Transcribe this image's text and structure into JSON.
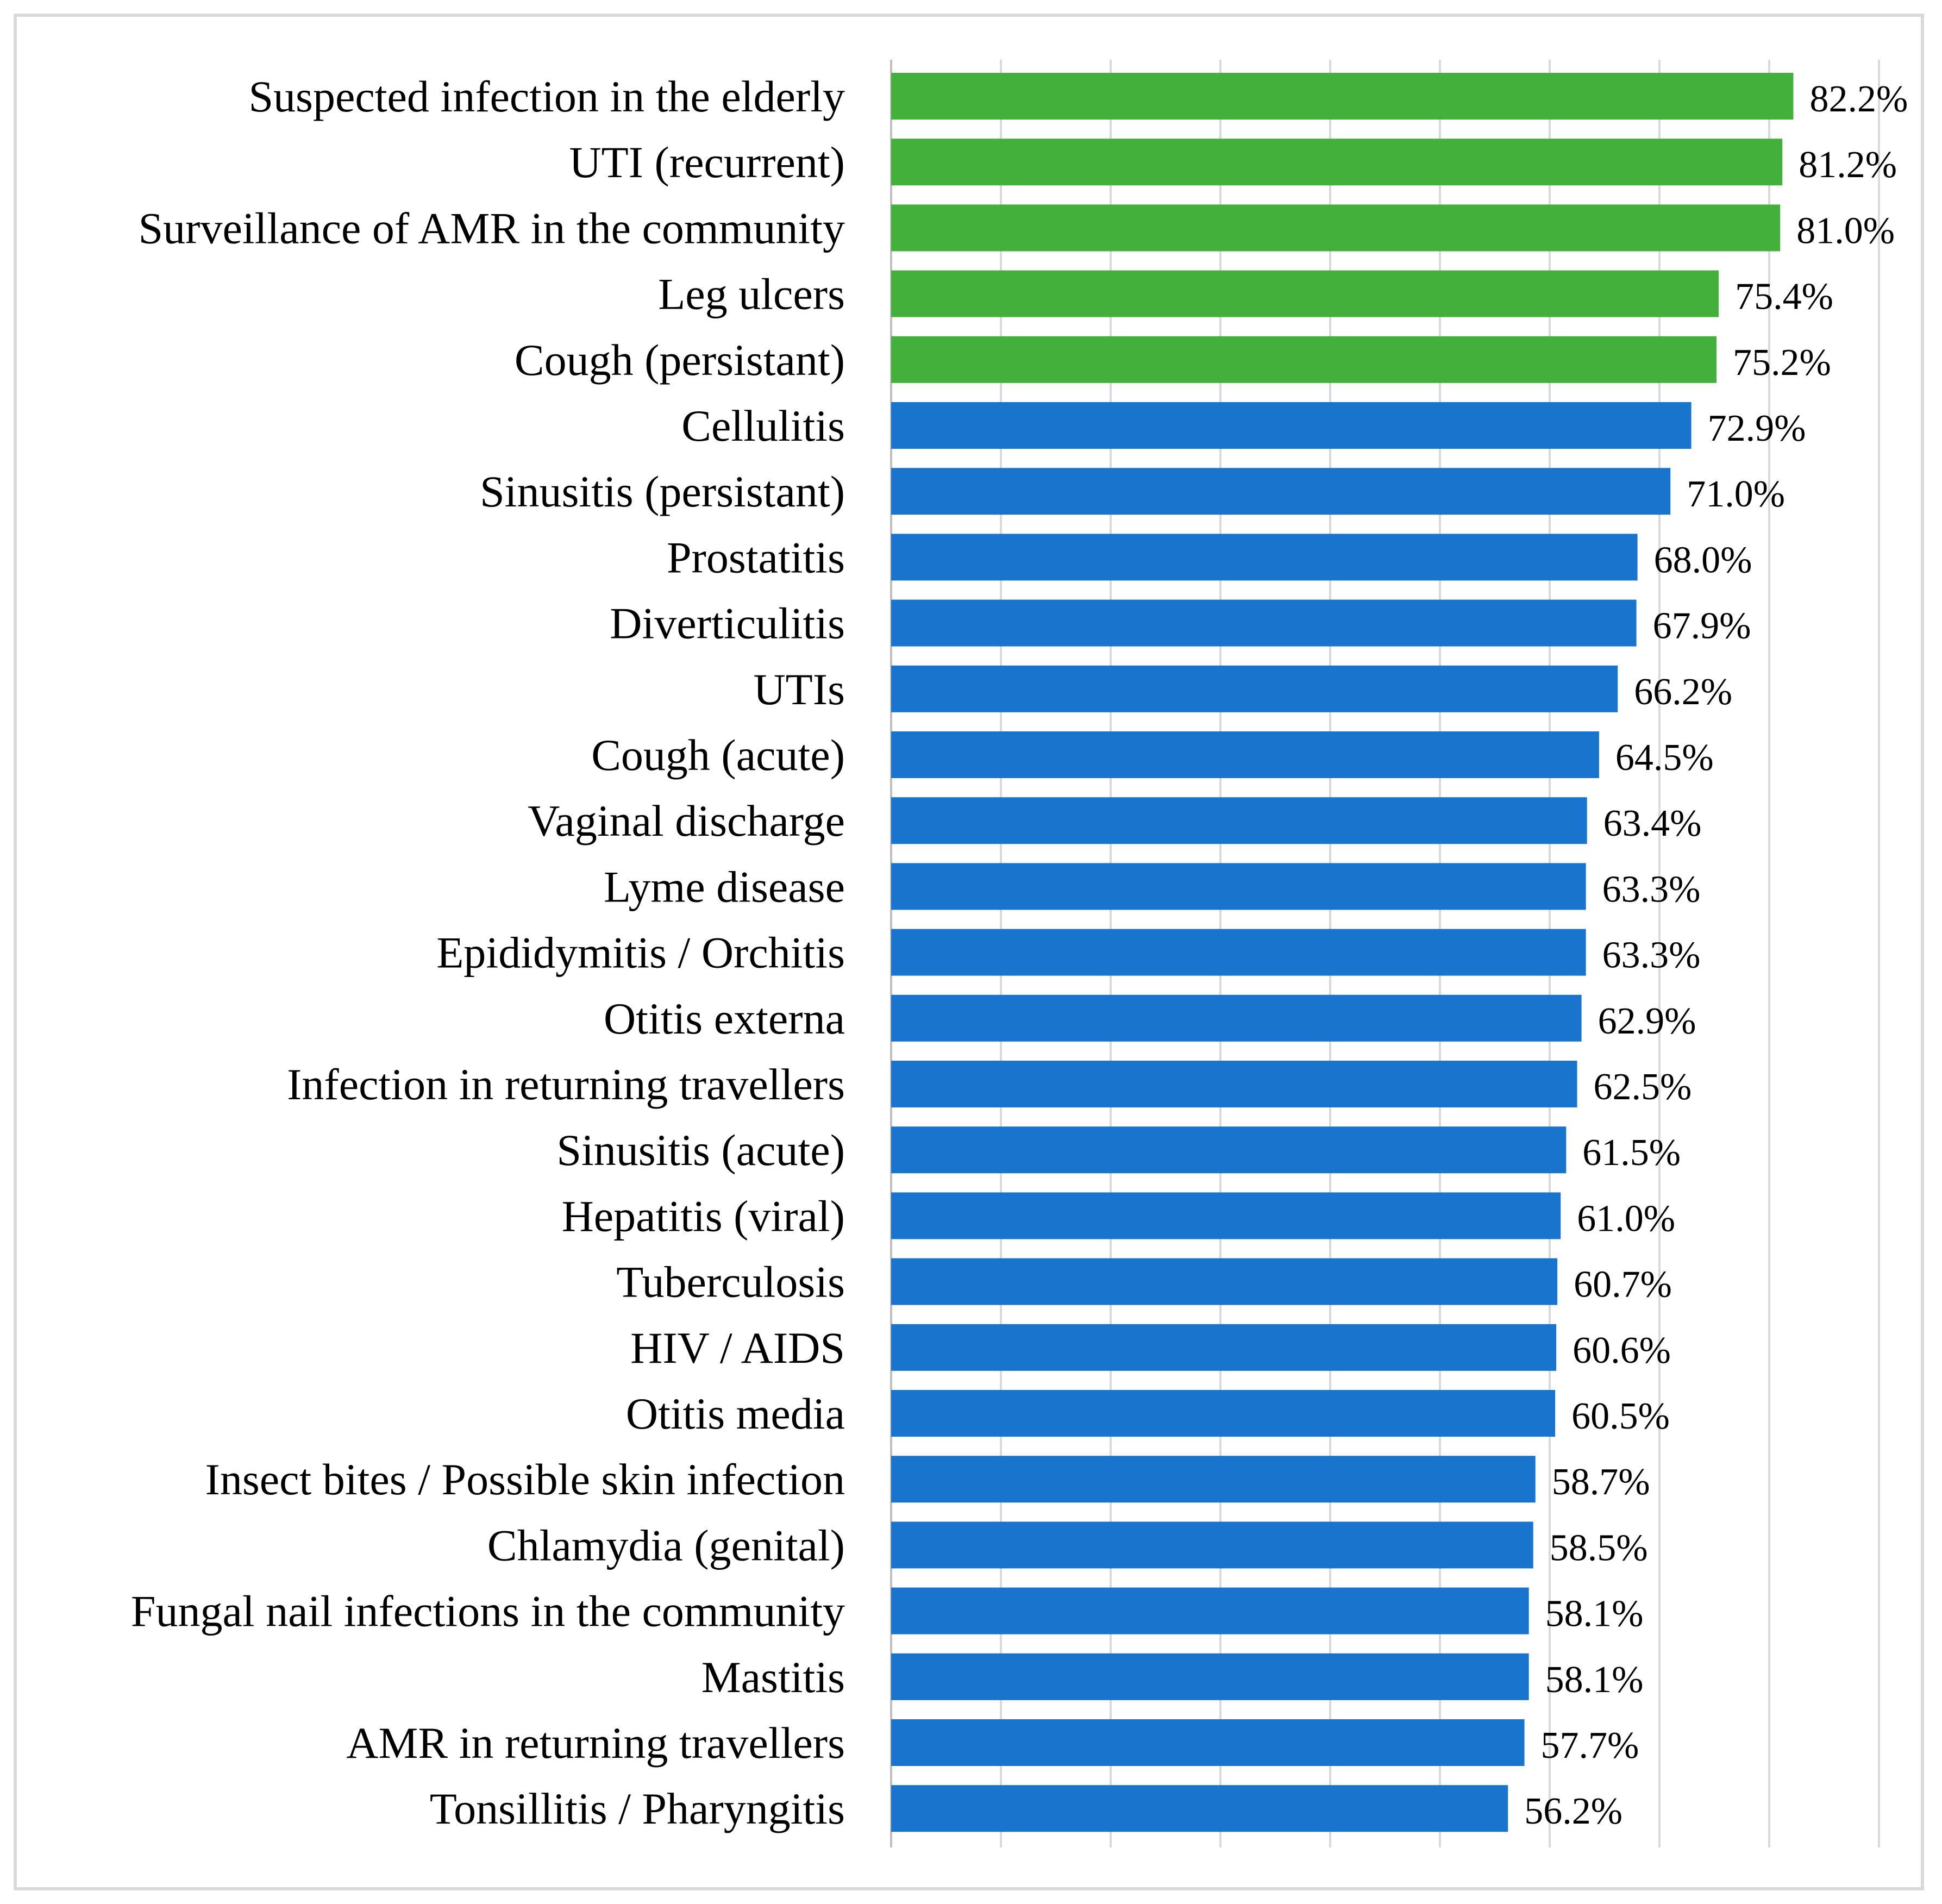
{
  "chart_data": {
    "type": "bar",
    "orientation": "horizontal",
    "title": "",
    "xlabel": "",
    "ylabel": "",
    "xlim": [
      0,
      90
    ],
    "grid": true,
    "value_suffix": "%",
    "colors": {
      "highlight": "#43b03b",
      "default": "#1874cd"
    },
    "highlight_count": 5,
    "categories": [
      "Suspected infection in the elderly",
      "UTI (recurrent)",
      "Surveillance of AMR in the community",
      "Leg ulcers",
      "Cough (persistant)",
      "Cellulitis",
      "Sinusitis (persistant)",
      "Prostatitis",
      "Diverticulitis",
      "UTIs",
      "Cough (acute)",
      "Vaginal discharge",
      "Lyme disease",
      "Epididymitis / Orchitis",
      "Otitis externa",
      "Infection in returning travellers",
      "Sinusitis (acute)",
      "Hepatitis (viral)",
      "Tuberculosis",
      "HIV / AIDS",
      "Otitis media",
      "Insect bites / Possible skin infection",
      "Chlamydia (genital)",
      "Fungal nail infections in the community",
      "Mastitis",
      "AMR in returning travellers",
      "Tonsillitis / Pharyngitis"
    ],
    "values": [
      82.2,
      81.2,
      81.0,
      75.4,
      75.2,
      72.9,
      71.0,
      68.0,
      67.9,
      66.2,
      64.5,
      63.4,
      63.3,
      63.3,
      62.9,
      62.5,
      61.5,
      61.0,
      60.7,
      60.6,
      60.5,
      58.7,
      58.5,
      58.1,
      58.1,
      57.7,
      56.2
    ],
    "value_labels": [
      "82.2%",
      "81.2%",
      "81.0%",
      "75.4%",
      "75.2%",
      "72.9%",
      "71.0%",
      "68.0%",
      "67.9%",
      "66.2%",
      "64.5%",
      "63.4%",
      "63.3%",
      "63.3%",
      "62.9%",
      "62.5%",
      "61.5%",
      "61.0%",
      "60.7%",
      "60.6%",
      "60.5%",
      "58.7%",
      "58.5%",
      "58.1%",
      "58.1%",
      "57.7%",
      "56.2%"
    ]
  }
}
